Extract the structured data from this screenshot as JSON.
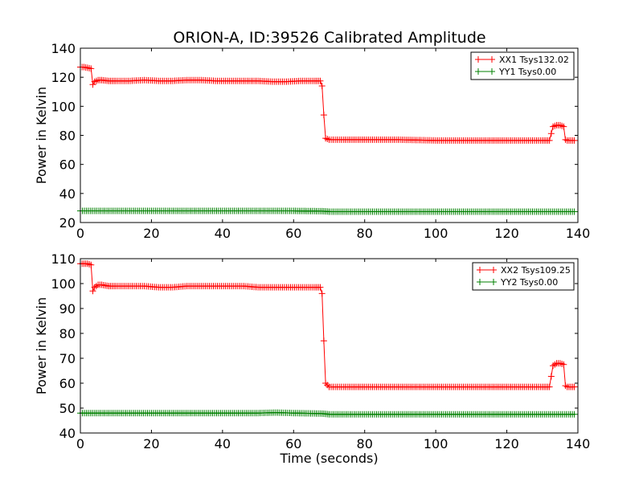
{
  "title": "ORION-A, ID:39526 Calibrated Amplitude",
  "colors": {
    "xx": "#ff0000",
    "yy": "#008000",
    "axes": "#000000",
    "background": "#ffffff"
  },
  "chart_data": [
    {
      "type": "line",
      "marker": "plus",
      "title": "ORION-A, ID:39526 Calibrated Amplitude",
      "xlabel": "",
      "ylabel": "Power in Kelvin",
      "xlim": [
        0,
        140
      ],
      "ylim": [
        20,
        140
      ],
      "xticks": [
        "0",
        "20",
        "40",
        "60",
        "80",
        "100",
        "120",
        "140"
      ],
      "yticks": [
        "20",
        "40",
        "60",
        "80",
        "100",
        "120",
        "140"
      ],
      "grid": false,
      "legend_position": "top-right",
      "series": [
        {
          "name": "XX1 Tsys132.02",
          "color": "#ff0000",
          "x": [
            0,
            1,
            2,
            3,
            3.5,
            4,
            5,
            6,
            8,
            10,
            14,
            18,
            22,
            26,
            30,
            34,
            38,
            42,
            46,
            50,
            54,
            58,
            62,
            66,
            67.5,
            68,
            68.5,
            69,
            70,
            74,
            80,
            90,
            100,
            110,
            120,
            130,
            132,
            133,
            134,
            135,
            136,
            136.5,
            137,
            138,
            139
          ],
          "y": [
            127,
            127,
            126.5,
            126,
            115,
            117,
            118,
            118,
            117.5,
            117.5,
            117.5,
            118,
            117.5,
            117.5,
            118,
            118,
            117.5,
            117.5,
            117.5,
            117.5,
            117,
            117,
            117.5,
            117.5,
            117.5,
            114,
            94,
            78,
            77,
            77,
            77,
            77,
            76.5,
            76.5,
            76.5,
            76.5,
            76.5,
            86,
            87,
            87,
            86,
            77,
            76.5,
            76.5,
            76.5
          ]
        },
        {
          "name": "YY1 Tsys0.00",
          "color": "#008000",
          "x": [
            0,
            10,
            20,
            30,
            40,
            50,
            60,
            68,
            70,
            80,
            90,
            100,
            110,
            120,
            130,
            139
          ],
          "y": [
            28,
            28,
            28,
            28,
            28,
            28,
            28,
            27.8,
            27.5,
            27.5,
            27.5,
            27.5,
            27.5,
            27.5,
            27.5,
            27.5
          ]
        }
      ]
    },
    {
      "type": "line",
      "marker": "plus",
      "title": "",
      "xlabel": "Time (seconds)",
      "ylabel": "Power in Kelvin",
      "xlim": [
        0,
        140
      ],
      "ylim": [
        40,
        110
      ],
      "xticks": [
        "0",
        "20",
        "40",
        "60",
        "80",
        "100",
        "120",
        "140"
      ],
      "yticks": [
        "40",
        "50",
        "60",
        "70",
        "80",
        "90",
        "100",
        "110"
      ],
      "grid": false,
      "legend_position": "top-right",
      "series": [
        {
          "name": "XX2 Tsys109.25",
          "color": "#ff0000",
          "x": [
            0,
            1,
            2,
            3,
            3.5,
            4,
            5,
            6,
            8,
            10,
            14,
            18,
            22,
            26,
            30,
            34,
            38,
            42,
            46,
            50,
            54,
            58,
            62,
            66,
            67.5,
            68,
            68.5,
            69,
            70,
            74,
            80,
            90,
            100,
            110,
            120,
            130,
            132,
            133,
            134,
            135,
            136,
            136.5,
            137,
            138,
            139
          ],
          "y": [
            108,
            108,
            108,
            107.5,
            97,
            98.5,
            99.5,
            99.5,
            99,
            99,
            99,
            99,
            98.5,
            98.5,
            99,
            99,
            99,
            99,
            99,
            98.5,
            98.5,
            98.5,
            98.5,
            98.5,
            98.5,
            96,
            77,
            60,
            58.5,
            58.5,
            58.5,
            58.5,
            58.5,
            58.5,
            58.5,
            58.5,
            58.5,
            67,
            68,
            68,
            67.5,
            59,
            58.5,
            58.5,
            58.5
          ]
        },
        {
          "name": "YY2 Tsys0.00",
          "color": "#008000",
          "x": [
            0,
            10,
            20,
            30,
            40,
            50,
            55,
            60,
            68,
            70,
            80,
            90,
            100,
            110,
            120,
            130,
            139
          ],
          "y": [
            48,
            48,
            48,
            48,
            48,
            48,
            48.2,
            48,
            47.8,
            47.5,
            47.5,
            47.5,
            47.5,
            47.5,
            47.5,
            47.5,
            47.5
          ]
        }
      ]
    }
  ]
}
